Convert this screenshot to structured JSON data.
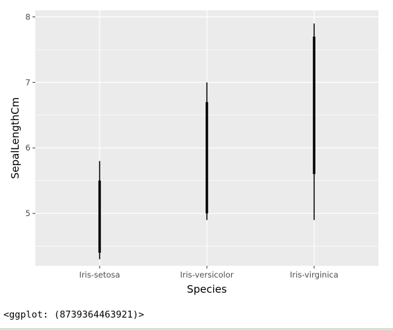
{
  "output_text": "<ggplot: (8739364463921)>",
  "colors": {
    "panel_background": "#ebebeb",
    "grid": "#ffffff",
    "mark": "#000000",
    "tick_label": "#4d4d4d",
    "bottom_rule": "#8cc08c"
  },
  "chart_data": {
    "type": "boxplot",
    "xlabel": "Species",
    "ylabel": "SepalLengthCm",
    "categories": [
      "Iris-setosa",
      "Iris-versicolor",
      "Iris-virginica"
    ],
    "ylim": [
      4.2,
      8.1
    ],
    "yticks": [
      5,
      6,
      7,
      8
    ],
    "grid": true,
    "boxes": [
      {
        "category": "Iris-setosa",
        "min": 4.3,
        "q1": 4.4,
        "q3": 5.5,
        "max": 5.8
      },
      {
        "category": "Iris-versicolor",
        "min": 4.9,
        "q1": 5.0,
        "q3": 6.7,
        "max": 7.0
      },
      {
        "category": "Iris-virginica",
        "min": 4.9,
        "q1": 5.6,
        "q3": 7.7,
        "max": 7.9
      }
    ]
  }
}
